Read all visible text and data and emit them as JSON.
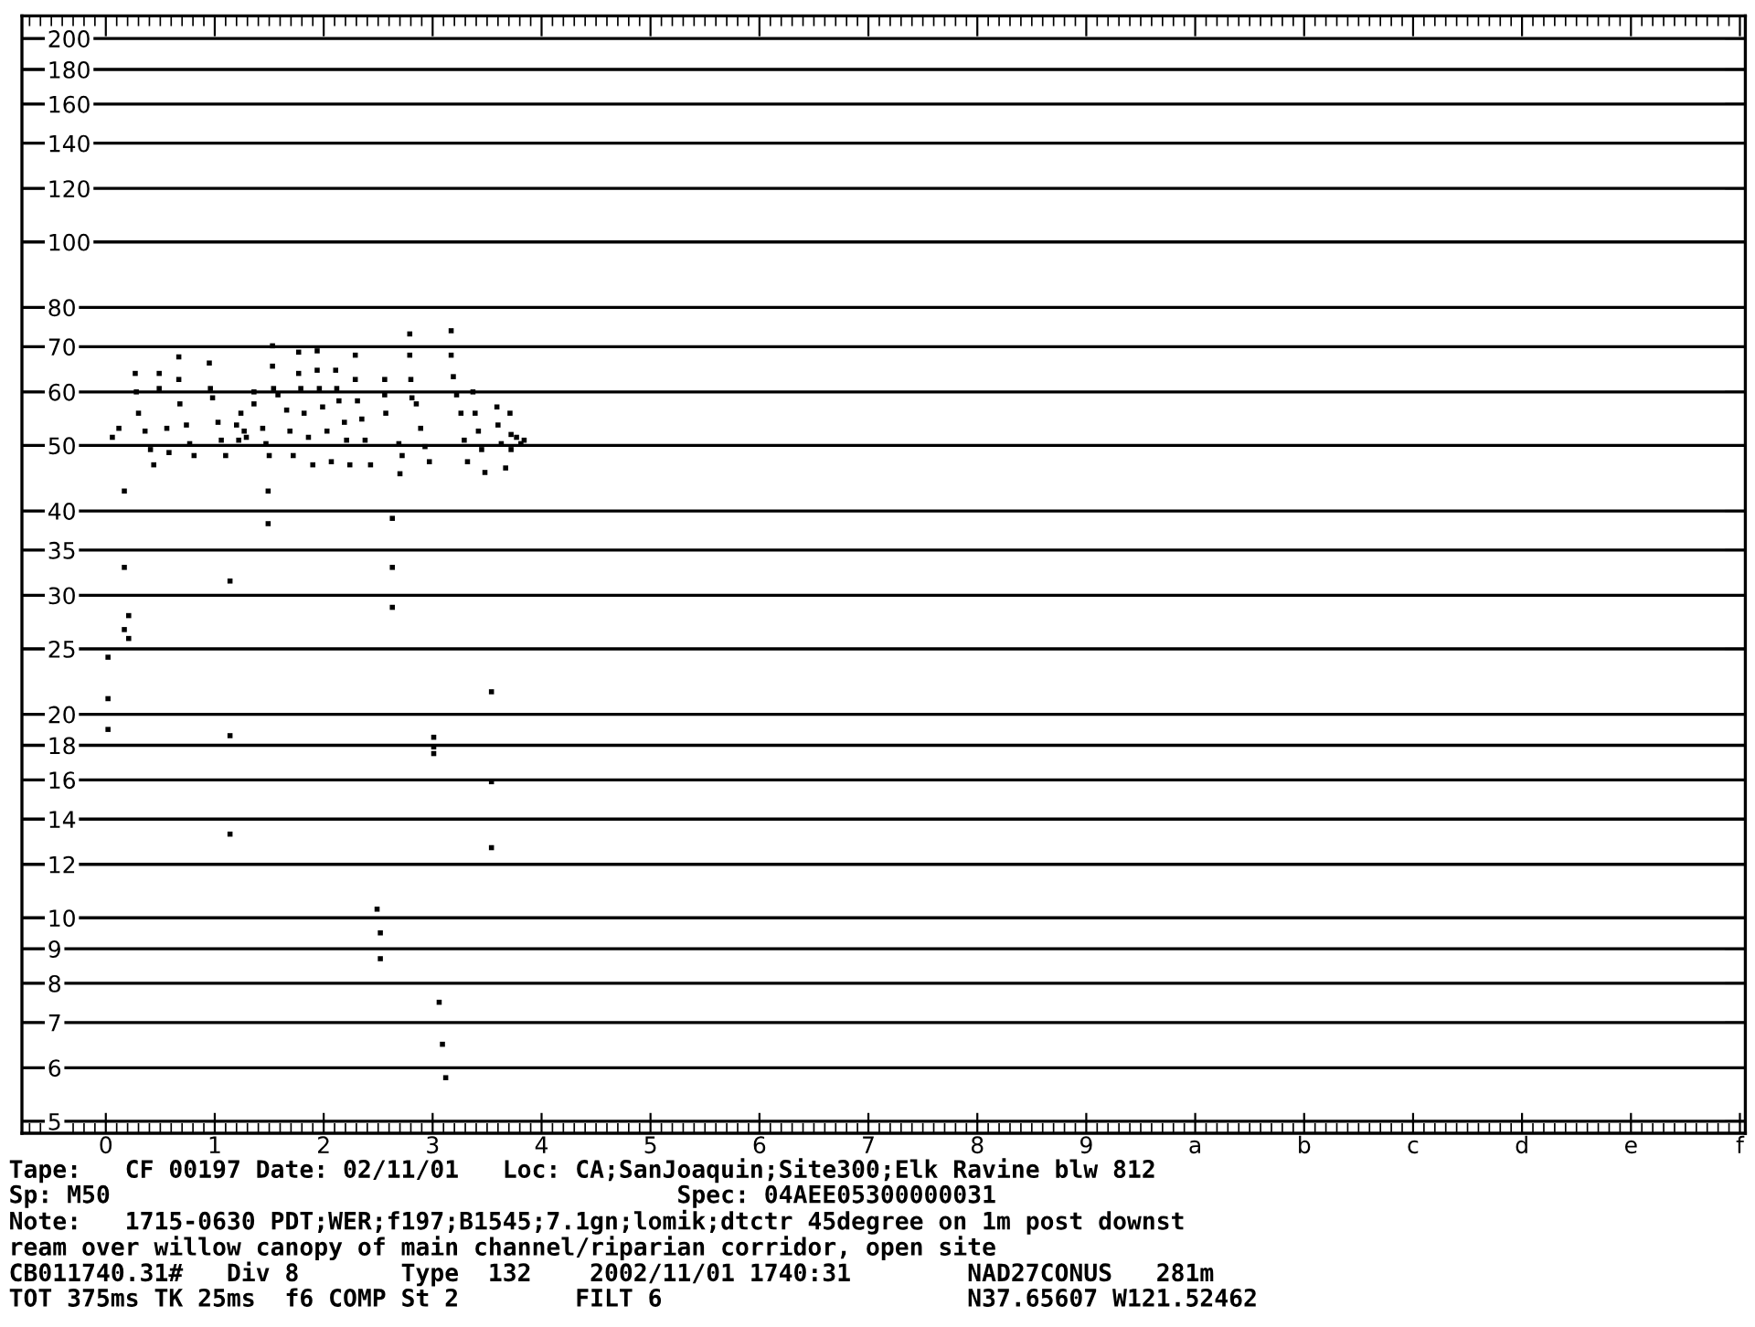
{
  "chart_data": {
    "type": "scatter",
    "log": "y",
    "grid": "y",
    "marker": "square",
    "xlim": [
      -0.77,
      15.05
    ],
    "ylim": [
      4.8,
      216
    ],
    "xticks": [
      0,
      1,
      2,
      3,
      4,
      5,
      6,
      7,
      8,
      9,
      {
        "value": 10,
        "label": "a"
      },
      {
        "value": 11,
        "label": "b"
      },
      {
        "value": 12,
        "label": "c"
      },
      {
        "value": 13,
        "label": "d"
      },
      {
        "value": 14,
        "label": "e"
      },
      {
        "value": 15,
        "label": "f"
      }
    ],
    "yticks": [
      5,
      6,
      7,
      8,
      9,
      10,
      12,
      14,
      16,
      18,
      20,
      25,
      30,
      35,
      40,
      50,
      60,
      70,
      80,
      100,
      120,
      140,
      160,
      180,
      200
    ],
    "series": [
      {
        "color": "#000000",
        "x": [
          0.06,
          0.12,
          0.27,
          0.28,
          0.3,
          0.36,
          0.41,
          0.44,
          0.49,
          0.49,
          0.56,
          0.58,
          0.67,
          0.67,
          0.68,
          0.74,
          0.77,
          0.81,
          0.95,
          0.96,
          0.98,
          1.03,
          1.06,
          1.1,
          1.2,
          1.22,
          1.24,
          1.27,
          1.29,
          1.36,
          1.36,
          1.44,
          1.47,
          1.5,
          1.53,
          1.53,
          1.54,
          1.58,
          1.66,
          1.69,
          1.72,
          1.77,
          1.77,
          1.79,
          1.82,
          1.86,
          1.9,
          1.94,
          1.94,
          1.96,
          1.99,
          2.03,
          2.07,
          2.11,
          2.12,
          2.14,
          2.19,
          2.21,
          2.24,
          2.29,
          2.29,
          2.31,
          2.35,
          2.38,
          2.43,
          2.56,
          2.56,
          2.57,
          2.69,
          2.72,
          2.7,
          2.79,
          2.79,
          2.8,
          2.81,
          2.85,
          2.89,
          2.93,
          2.97,
          3.17,
          3.17,
          3.19,
          3.22,
          3.26,
          3.29,
          3.32,
          3.37,
          3.39,
          3.42,
          3.45,
          3.48,
          3.59,
          3.6,
          3.63,
          3.67,
          3.71,
          3.72,
          3.72,
          3.77,
          3.81,
          3.84,
          0.17,
          0.17,
          0.21,
          0.17,
          0.21,
          0.02,
          1.49,
          1.49,
          1.14,
          2.63,
          2.63,
          2.63,
          3.54,
          0.02,
          0.02,
          1.14,
          3.01,
          3.01,
          3.01,
          3.54,
          1.14,
          3.54,
          2.49,
          2.52,
          2.52,
          3.06,
          3.09,
          3.12
        ],
        "values": [
          51.4,
          53.0,
          63.9,
          60.0,
          55.8,
          52.5,
          49.3,
          46.8,
          63.9,
          60.7,
          53.0,
          48.8,
          67.6,
          62.6,
          57.6,
          53.6,
          50.3,
          48.3,
          66.2,
          60.7,
          58.8,
          54.1,
          50.9,
          48.3,
          53.6,
          50.9,
          55.8,
          52.5,
          51.4,
          60.0,
          57.6,
          53.0,
          50.3,
          48.3,
          70.2,
          65.5,
          60.7,
          59.4,
          56.4,
          52.5,
          48.3,
          68.7,
          63.9,
          60.7,
          55.8,
          51.4,
          46.8,
          69.0,
          64.6,
          60.7,
          57.0,
          52.5,
          47.3,
          64.6,
          60.7,
          58.2,
          54.1,
          50.9,
          46.8,
          68.0,
          62.6,
          58.2,
          54.7,
          50.9,
          46.8,
          62.6,
          59.4,
          55.8,
          50.3,
          48.3,
          45.4,
          73.1,
          68.0,
          62.6,
          58.8,
          57.6,
          53.0,
          49.8,
          47.3,
          73.9,
          68.0,
          63.2,
          59.4,
          55.8,
          50.9,
          47.3,
          60.0,
          55.8,
          52.5,
          49.3,
          45.6,
          57.0,
          53.6,
          50.3,
          46.3,
          55.8,
          51.9,
          49.3,
          51.4,
          50.3,
          50.9,
          42.8,
          33.0,
          28.0,
          26.7,
          25.9,
          24.3,
          42.8,
          38.3,
          31.5,
          39.0,
          33.0,
          28.8,
          21.6,
          21.1,
          19.0,
          18.6,
          18.5,
          17.9,
          17.5,
          15.9,
          13.3,
          12.7,
          10.3,
          9.5,
          8.7,
          7.5,
          6.5,
          5.8
        ]
      }
    ],
    "annotations": [
      "Tape:   CF 00197 Date: 02/11/01   Loc: CA;SanJoaquin;Site300;Elk Ravine blw 812",
      "Sp: M50                                       Spec: 04AEE05300000031",
      "Note:   1715-0630 PDT;WER;f197;B1545;7.1gn;lomik;dtctr 45degree on 1m post downst",
      "ream over willow canopy of main channel/riparian corridor, open site",
      "CB011740.31#   Div 8       Type  132    2002/11/01 1740:31        NAD27CONUS   281m",
      "TOT 375ms TK 25ms  f6 COMP St 2        FILT 6                     N37.65607 W121.52462"
    ]
  }
}
